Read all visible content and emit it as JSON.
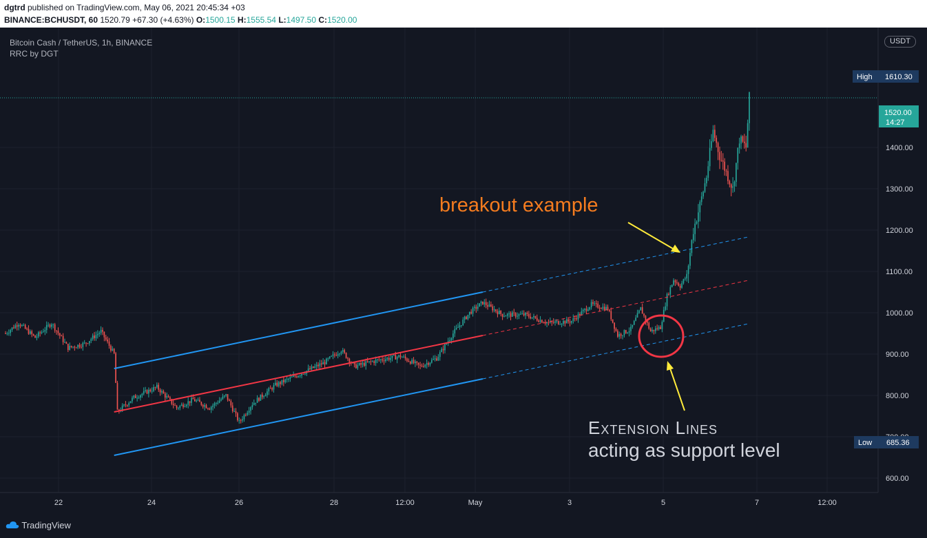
{
  "header": {
    "publisher": "dgtrd",
    "published_text": "published on TradingView.com, May 06, 2021 20:45:34 +03",
    "symbol": "BINANCE:BCHUSDT, 60",
    "last": "1520.79",
    "change": "+67.30 (+4.63%)",
    "o_label": "O:",
    "o_value": "1500.15",
    "h_label": "H:",
    "h_value": "1555.54",
    "l_label": "L:",
    "l_value": "1497.50",
    "c_label": "C:",
    "c_value": "1520.00"
  },
  "legend": {
    "title": "Bitcoin Cash / TetherUS, 1h, BINANCE",
    "indicator": "RRC by DGT"
  },
  "price_axis": {
    "currency_tag": "USDT",
    "high_label": "High",
    "high_value": "1610.30",
    "low_label": "Low",
    "low_value": "685.36",
    "current_price": "1520.00",
    "countdown": "14:27"
  },
  "annotations": {
    "breakout": "breakout example",
    "extension_line1": "Extension Lines",
    "extension_line2": "acting as support level"
  },
  "footer": {
    "brand": "TradingView"
  },
  "colors": {
    "background": "#131722",
    "up": "#26a69a",
    "down": "#ef5350",
    "channel": "#2196f3",
    "midline": "#f23645",
    "arrow": "#ffeb3b",
    "annotation_orange": "#f57c1f",
    "circle": "#f23645"
  },
  "chart_data": {
    "type": "candlestick",
    "y_ticks": [
      600,
      700,
      800,
      900,
      1000,
      1100,
      1200,
      1300,
      1400
    ],
    "y_tick_labels": [
      "600.00",
      "700.00",
      "800.00",
      "900.00",
      "1000.00",
      "1100.00",
      "1200.00",
      "1300.00",
      "1400.00"
    ],
    "ylim": [
      565,
      1690
    ],
    "x_ticks": [
      {
        "label": "22",
        "slot": 0
      },
      {
        "label": "24",
        "slot": 1
      },
      {
        "label": "26",
        "slot": 2
      },
      {
        "label": "28",
        "slot": 3
      },
      {
        "label": "12:00",
        "slot": 4
      },
      {
        "label": "May",
        "slot": 5
      },
      {
        "label": "3",
        "slot": 6
      },
      {
        "label": "5",
        "slot": 7
      },
      {
        "label": "7",
        "slot": 8
      },
      {
        "label": "12:00",
        "slot": 9
      }
    ],
    "anchors": [
      {
        "i": 0,
        "p": 950
      },
      {
        "i": 8,
        "p": 975
      },
      {
        "i": 18,
        "p": 940
      },
      {
        "i": 28,
        "p": 975
      },
      {
        "i": 38,
        "p": 915
      },
      {
        "i": 48,
        "p": 925
      },
      {
        "i": 58,
        "p": 955
      },
      {
        "i": 66,
        "p": 900
      },
      {
        "i": 68,
        "p": 760
      },
      {
        "i": 78,
        "p": 795
      },
      {
        "i": 92,
        "p": 820
      },
      {
        "i": 104,
        "p": 770
      },
      {
        "i": 114,
        "p": 790
      },
      {
        "i": 124,
        "p": 770
      },
      {
        "i": 134,
        "p": 800
      },
      {
        "i": 142,
        "p": 735
      },
      {
        "i": 150,
        "p": 780
      },
      {
        "i": 164,
        "p": 825
      },
      {
        "i": 178,
        "p": 850
      },
      {
        "i": 194,
        "p": 880
      },
      {
        "i": 204,
        "p": 910
      },
      {
        "i": 212,
        "p": 870
      },
      {
        "i": 226,
        "p": 885
      },
      {
        "i": 240,
        "p": 895
      },
      {
        "i": 252,
        "p": 870
      },
      {
        "i": 262,
        "p": 890
      },
      {
        "i": 272,
        "p": 950
      },
      {
        "i": 282,
        "p": 1000
      },
      {
        "i": 290,
        "p": 1025
      },
      {
        "i": 302,
        "p": 995
      },
      {
        "i": 316,
        "p": 995
      },
      {
        "i": 330,
        "p": 975
      },
      {
        "i": 344,
        "p": 980
      },
      {
        "i": 356,
        "p": 1020
      },
      {
        "i": 366,
        "p": 1010
      },
      {
        "i": 372,
        "p": 945
      },
      {
        "i": 380,
        "p": 960
      },
      {
        "i": 386,
        "p": 1010
      },
      {
        "i": 392,
        "p": 955
      },
      {
        "i": 398,
        "p": 965
      },
      {
        "i": 402,
        "p": 1040
      },
      {
        "i": 406,
        "p": 1080
      },
      {
        "i": 410,
        "p": 1065
      },
      {
        "i": 414,
        "p": 1090
      },
      {
        "i": 418,
        "p": 1200
      },
      {
        "i": 422,
        "p": 1260
      },
      {
        "i": 426,
        "p": 1330
      },
      {
        "i": 430,
        "p": 1440
      },
      {
        "i": 434,
        "p": 1380
      },
      {
        "i": 438,
        "p": 1340
      },
      {
        "i": 442,
        "p": 1300
      },
      {
        "i": 446,
        "p": 1420
      },
      {
        "i": 450,
        "p": 1400
      },
      {
        "i": 452,
        "p": 1520
      }
    ],
    "channel": {
      "start_index": 66,
      "end_solid_index": 290,
      "end_dashed_index": 452,
      "mid_start": 760,
      "mid_end_solid": 945,
      "width_below": 105,
      "width_above": 105
    }
  }
}
